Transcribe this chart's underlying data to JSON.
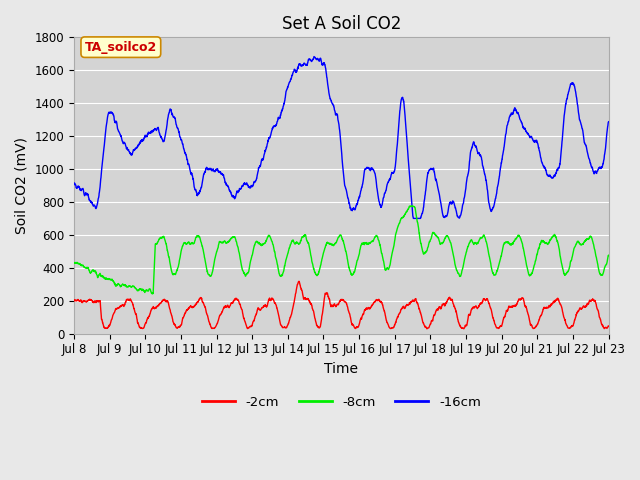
{
  "title": "Set A Soil CO2",
  "ylabel": "Soil CO2 (mV)",
  "xlabel": "Time",
  "annotation": "TA_soilco2",
  "background_color": "#e8e8e8",
  "plot_bg_color": "#d4d4d4",
  "ylim": [
    0,
    1800
  ],
  "legend_labels": [
    "-2cm",
    "-8cm",
    "-16cm"
  ],
  "legend_colors": [
    "red",
    "lime",
    "blue"
  ],
  "x_tick_labels": [
    "Jul 8",
    "Jul 9",
    "Jul 10",
    "Jul 11",
    "Jul 12",
    "Jul 13",
    "Jul 14",
    "Jul 15",
    "Jul 16",
    "Jul 17",
    "Jul 18",
    "Jul 19",
    "Jul 20",
    "Jul 21",
    "Jul 22",
    "Jul 23"
  ],
  "title_fontsize": 12,
  "axis_label_fontsize": 10,
  "tick_fontsize": 8.5
}
